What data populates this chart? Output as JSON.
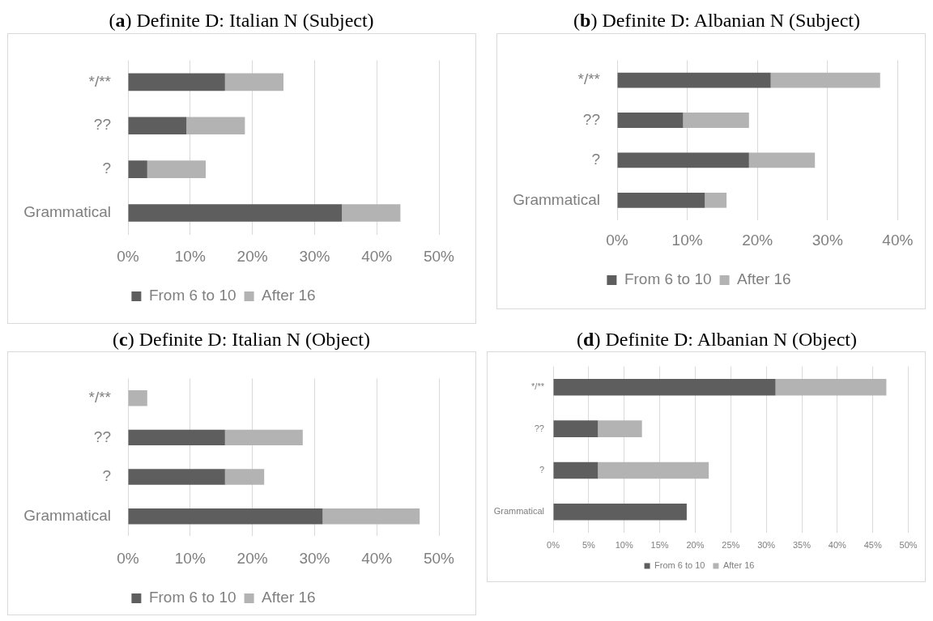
{
  "chart_data": [
    {
      "type": "bar",
      "orientation": "horizontal",
      "stacked": true,
      "title": "(a) Definite D: Italian N (Subject)",
      "categories": [
        "*/**",
        "??",
        "?",
        "Grammatical"
      ],
      "series": [
        {
          "name": "From 6 to 10",
          "color": "#5e5e5e",
          "values": [
            15.6,
            9.4,
            3.1,
            34.4
          ]
        },
        {
          "name": "After 16",
          "color": "#b3b3b3",
          "values": [
            9.4,
            9.4,
            9.4,
            9.4
          ]
        }
      ],
      "xlim": [
        0,
        50
      ],
      "xticks": [
        {
          "value": 0,
          "label": "0%"
        },
        {
          "value": 10,
          "label": "10%"
        },
        {
          "value": 20,
          "label": "20%"
        },
        {
          "value": 30,
          "label": "30%"
        },
        {
          "value": 40,
          "label": "40%"
        },
        {
          "value": 50,
          "label": "50%"
        }
      ],
      "grid": "x",
      "legend": "bottom"
    },
    {
      "type": "bar",
      "orientation": "horizontal",
      "stacked": true,
      "title": "(b) Definite D: Albanian N (Subject)",
      "categories": [
        "*/**",
        "??",
        "?",
        "Grammatical"
      ],
      "series": [
        {
          "name": "From 6 to 10",
          "color": "#5e5e5e",
          "values": [
            21.9,
            9.4,
            18.8,
            12.5
          ]
        },
        {
          "name": "After 16",
          "color": "#b3b3b3",
          "values": [
            15.6,
            9.4,
            9.4,
            3.1
          ]
        }
      ],
      "xlim": [
        0,
        40
      ],
      "xticks": [
        {
          "value": 0,
          "label": "0%"
        },
        {
          "value": 10,
          "label": "10%"
        },
        {
          "value": 20,
          "label": "20%"
        },
        {
          "value": 30,
          "label": "30%"
        },
        {
          "value": 40,
          "label": "40%"
        }
      ],
      "grid": "x",
      "legend": "bottom"
    },
    {
      "type": "bar",
      "orientation": "horizontal",
      "stacked": true,
      "title": "(c) Definite D: Italian N (Object)",
      "categories": [
        "*/**",
        "??",
        "?",
        "Grammatical"
      ],
      "series": [
        {
          "name": "From 6 to 10",
          "color": "#5e5e5e",
          "values": [
            0,
            15.6,
            15.6,
            31.3
          ]
        },
        {
          "name": "After 16",
          "color": "#b3b3b3",
          "values": [
            3.1,
            12.5,
            6.3,
            15.6
          ]
        }
      ],
      "xlim": [
        0,
        50
      ],
      "xticks": [
        {
          "value": 0,
          "label": "0%"
        },
        {
          "value": 10,
          "label": "10%"
        },
        {
          "value": 20,
          "label": "20%"
        },
        {
          "value": 30,
          "label": "30%"
        },
        {
          "value": 40,
          "label": "40%"
        },
        {
          "value": 50,
          "label": "50%"
        }
      ],
      "grid": "x",
      "legend": "bottom"
    },
    {
      "type": "bar",
      "orientation": "horizontal",
      "stacked": true,
      "title": "(d) Definite D: Albanian N (Object)",
      "categories": [
        "*/**",
        "??",
        "?",
        "Grammatical"
      ],
      "series": [
        {
          "name": "From 6 to 10",
          "color": "#5e5e5e",
          "values": [
            31.3,
            6.3,
            6.3,
            18.8
          ]
        },
        {
          "name": "After 16",
          "color": "#b3b3b3",
          "values": [
            15.6,
            6.2,
            15.6,
            0
          ]
        }
      ],
      "xlim": [
        0,
        50
      ],
      "xticks": [
        {
          "value": 0,
          "label": "0%"
        },
        {
          "value": 5,
          "label": "5%"
        },
        {
          "value": 10,
          "label": "10%"
        },
        {
          "value": 15,
          "label": "15%"
        },
        {
          "value": 20,
          "label": "20%"
        },
        {
          "value": 25,
          "label": "25%"
        },
        {
          "value": 30,
          "label": "30%"
        },
        {
          "value": 35,
          "label": "35%"
        },
        {
          "value": 40,
          "label": "40%"
        },
        {
          "value": 45,
          "label": "45%"
        },
        {
          "value": 50,
          "label": "50%"
        }
      ],
      "grid": "x",
      "legend": "bottom"
    }
  ]
}
